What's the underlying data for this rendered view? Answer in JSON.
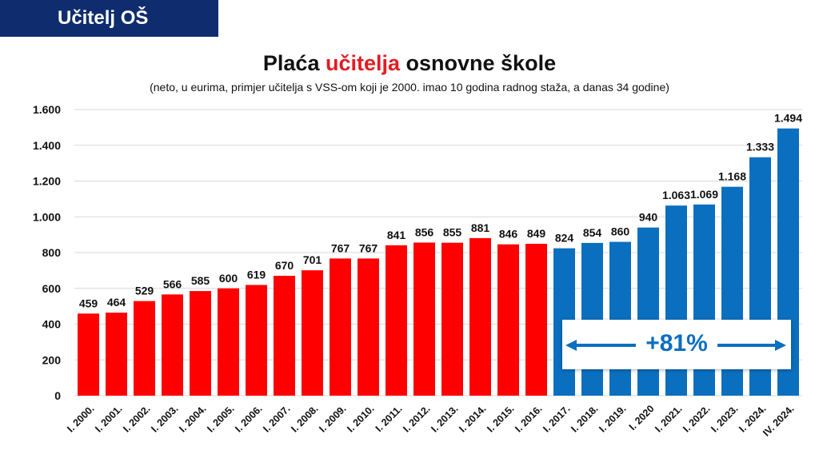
{
  "header": {
    "badge": "Učitelj OŠ"
  },
  "chart_data": {
    "type": "bar",
    "title_pre": "Plaća ",
    "title_highlight": "učitelja",
    "title_post": " osnovne škole",
    "subtitle": "(neto, u eurima, primjer učitelja s VSS-om koji je 2000. imao 10 godina radnog staža, a danas 34 godine)",
    "xlabel": "",
    "ylabel": "",
    "ylim": [
      0,
      1600
    ],
    "yticks": [
      0,
      200,
      400,
      600,
      800,
      1000,
      1200,
      1400,
      1600
    ],
    "ytick_labels": [
      "0",
      "200",
      "400",
      "600",
      "800",
      "1.000",
      "1.200",
      "1.400",
      "1.600"
    ],
    "grid": true,
    "categories": [
      "I. 2000.",
      "I. 2001.",
      "I. 2002.",
      "I. 2003.",
      "I. 2004.",
      "I. 2005.",
      "I. 2006.",
      "I. 2007.",
      "I. 2008.",
      "I. 2009.",
      "I. 2010.",
      "I. 2011.",
      "I. 2012.",
      "I. 2013.",
      "I. 2014.",
      "I. 2015.",
      "I. 2016.",
      "I. 2017.",
      "I. 2018.",
      "I. 2019.",
      "I. 2020",
      "I. 2021.",
      "I. 2022.",
      "I. 2023.",
      "I. 2024.",
      "IV. 2024."
    ],
    "values": [
      459,
      464,
      529,
      566,
      585,
      600,
      619,
      670,
      701,
      767,
      767,
      841,
      856,
      855,
      881,
      846,
      849,
      824,
      854,
      860,
      940,
      1063,
      1069,
      1168,
      1333,
      1494
    ],
    "value_labels": [
      "459",
      "464",
      "529",
      "566",
      "585",
      "600",
      "619",
      "670",
      "701",
      "767",
      "767",
      "841",
      "856",
      "855",
      "881",
      "846",
      "849",
      "824",
      "854",
      "860",
      "940",
      "1.063",
      "1.069",
      "1.168",
      "1.333",
      "1.494"
    ],
    "bar_colors": [
      "red",
      "red",
      "red",
      "red",
      "red",
      "red",
      "red",
      "red",
      "red",
      "red",
      "red",
      "red",
      "red",
      "red",
      "red",
      "red",
      "red",
      "blue",
      "blue",
      "blue",
      "blue",
      "blue",
      "blue",
      "blue",
      "blue",
      "blue"
    ],
    "colors": {
      "red": "#ff0000",
      "blue": "#0b6fbf",
      "grid": "#d9d9d9",
      "arrow": "#0b6fbf"
    },
    "annotation": "+81%"
  }
}
